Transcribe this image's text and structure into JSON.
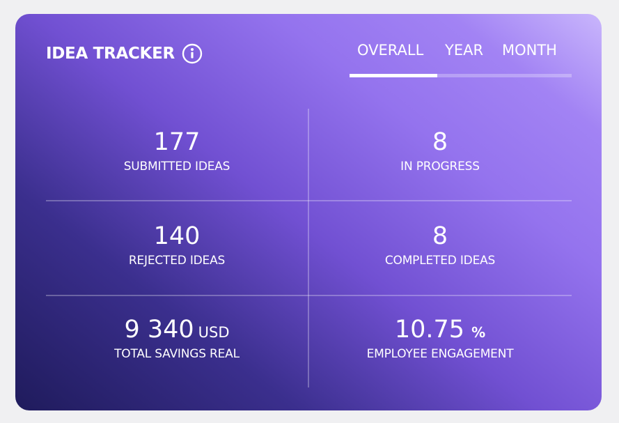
{
  "card": {
    "title": "IDEA TRACKER",
    "info_icon": "info-circle-icon",
    "colors": {
      "gradient_dark": "#1f1b5c",
      "gradient_mid": "#7150d2",
      "gradient_light": "#c9b6fc",
      "text": "#ffffff",
      "page_background": "#f0f0f2"
    }
  },
  "tabs": {
    "items": [
      {
        "label": "OVERALL",
        "active": true
      },
      {
        "label": "YEAR",
        "active": false
      },
      {
        "label": "MONTH",
        "active": false
      }
    ]
  },
  "stats": [
    {
      "value": "177",
      "unit": "",
      "label": "SUBMITTED IDEAS"
    },
    {
      "value": "8",
      "unit": "",
      "label": "IN PROGRESS"
    },
    {
      "value": "140",
      "unit": "",
      "label": "REJECTED IDEAS"
    },
    {
      "value": "8",
      "unit": "",
      "label": "COMPLETED IDEAS"
    },
    {
      "value": "9 340",
      "unit": "USD",
      "label": "TOTAL SAVINGS REAL"
    },
    {
      "value": "10.75",
      "unit": "%",
      "label": "EMPLOYEE ENGAGEMENT"
    }
  ]
}
